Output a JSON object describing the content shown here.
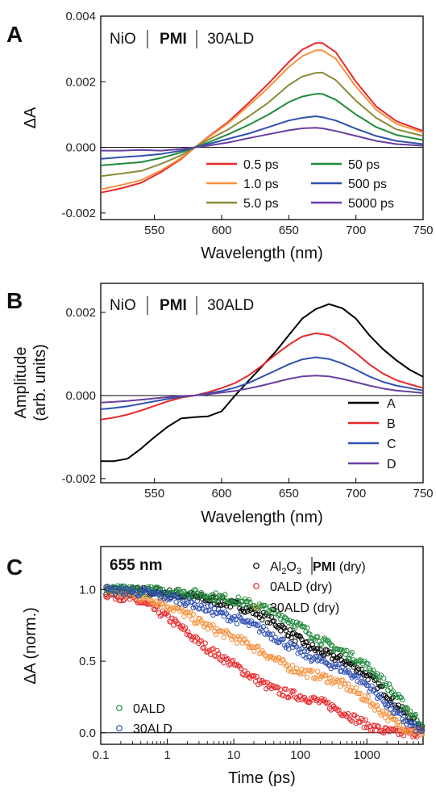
{
  "colors": {
    "red": "#e8282a",
    "orange": "#f5923e",
    "olive": "#8a8a3a",
    "green": "#218a3c",
    "blue": "#3050b0",
    "purple": "#6a3fa0",
    "black": "#000000"
  },
  "chart_data": [
    {
      "panel_letter": "A",
      "type": "line",
      "annotation_parts": [
        "NiO",
        "PMI",
        "30ALD"
      ],
      "xlabel": "Wavelength (nm)",
      "ylabel": "ΔA",
      "xlim": [
        510,
        750
      ],
      "ylim": [
        -0.0022,
        0.004
      ],
      "xticks": [
        550,
        600,
        650,
        700,
        750
      ],
      "yticks": [
        -0.002,
        0.0,
        0.002,
        0.004
      ],
      "ytick_labels": [
        "-0.002",
        "0.000",
        "0.002",
        "0.004"
      ],
      "legend_position": "bottom-right",
      "x": [
        510,
        525,
        540,
        555,
        570,
        580,
        590,
        605,
        620,
        635,
        650,
        660,
        670,
        675,
        685,
        700,
        715,
        730,
        750
      ],
      "series": [
        {
          "name": "0.5 ps",
          "color": "red",
          "values": [
            -0.00138,
            -0.00125,
            -0.00108,
            -0.00075,
            -0.00035,
            0.0,
            0.00032,
            0.00078,
            0.00135,
            0.00195,
            0.0026,
            0.00298,
            0.00318,
            0.00318,
            0.0029,
            0.002,
            0.00125,
            0.0008,
            0.0005
          ]
        },
        {
          "name": "1.0 ps",
          "color": "orange",
          "values": [
            -0.00128,
            -0.00115,
            -0.001,
            -0.0007,
            -0.00032,
            0.0,
            0.0003,
            0.00074,
            0.00127,
            0.00183,
            0.00245,
            0.00278,
            0.00296,
            0.00296,
            0.0027,
            0.00185,
            0.00115,
            0.00072,
            0.00045
          ]
        },
        {
          "name": "5.0 ps",
          "color": "olive",
          "values": [
            -0.00088,
            -0.0008,
            -0.00072,
            -0.0005,
            -0.00024,
            0.0,
            0.00023,
            0.00055,
            0.00094,
            0.00137,
            0.0019,
            0.00216,
            0.00227,
            0.00228,
            0.00205,
            0.00142,
            0.0009,
            0.00055,
            0.00035
          ]
        },
        {
          "name": "50 ps",
          "color": "green",
          "values": [
            -0.00055,
            -0.0005,
            -0.00045,
            -0.00032,
            -0.00015,
            0.0,
            0.00015,
            0.0004,
            0.00068,
            0.001,
            0.00138,
            0.00155,
            0.00163,
            0.00163,
            0.00145,
            0.001,
            0.00062,
            0.00038,
            0.00022
          ]
        },
        {
          "name": "500 ps",
          "color": "blue",
          "values": [
            -0.00035,
            -0.0003,
            -0.00026,
            -0.0002,
            -0.0001,
            0.0,
            0.0001,
            0.00026,
            0.00042,
            0.00062,
            0.00082,
            0.0009,
            0.00095,
            0.00092,
            0.00082,
            0.00057,
            0.00035,
            0.0002,
            0.0001
          ]
        },
        {
          "name": "5000 ps",
          "color": "purple",
          "values": [
            -0.0001,
            -0.0001,
            -8e-05,
            -0.0001,
            -5e-05,
            0.0,
            5e-05,
            0.00015,
            0.00028,
            0.0004,
            0.00052,
            0.00058,
            0.0006,
            0.00058,
            0.0005,
            0.00035,
            0.0002,
            0.0001,
            5e-05
          ]
        }
      ]
    },
    {
      "panel_letter": "B",
      "type": "line",
      "annotation_parts": [
        "NiO",
        "PMI",
        "30ALD"
      ],
      "xlabel": "Wavelength (nm)",
      "ylabel_lines": [
        "Amplitude",
        "(arb. units)"
      ],
      "xlim": [
        510,
        750
      ],
      "ylim": [
        -0.0021,
        0.0027
      ],
      "xticks": [
        550,
        600,
        650,
        700,
        750
      ],
      "yticks": [
        -0.002,
        0.0,
        0.002
      ],
      "ytick_labels": [
        "-0.002",
        "0.000",
        "0.002"
      ],
      "legend_position": "bottom-right",
      "x": [
        510,
        520,
        530,
        540,
        550,
        560,
        570,
        580,
        590,
        600,
        610,
        620,
        630,
        640,
        650,
        660,
        670,
        680,
        690,
        700,
        710,
        720,
        730,
        740,
        750
      ],
      "series": [
        {
          "name": "A",
          "color": "black",
          "values": [
            -0.00158,
            -0.00158,
            -0.00152,
            -0.00128,
            -0.001,
            -0.00075,
            -0.00055,
            -0.00052,
            -0.0005,
            -0.00038,
            0.0,
            0.00035,
            0.0007,
            0.00105,
            0.00145,
            0.00185,
            0.00208,
            0.0022,
            0.0021,
            0.00185,
            0.00145,
            0.00112,
            0.00085,
            0.00062,
            0.00045
          ]
        },
        {
          "name": "B",
          "color": "red",
          "values": [
            -0.00058,
            -0.00053,
            -0.00046,
            -0.00036,
            -0.00025,
            -0.00014,
            -5e-05,
            0.0,
            8e-05,
            0.00018,
            0.0003,
            0.00048,
            0.00072,
            0.00098,
            0.00122,
            0.00142,
            0.0015,
            0.00145,
            0.00127,
            0.00102,
            0.00075,
            0.00053,
            0.00037,
            0.00027,
            0.00018
          ]
        },
        {
          "name": "C",
          "color": "blue",
          "values": [
            -0.00033,
            -0.0003,
            -0.00026,
            -0.0002,
            -0.00014,
            -8e-05,
            -3e-05,
            0.0,
            5e-05,
            0.00011,
            0.00019,
            0.0003,
            0.00045,
            0.0006,
            0.00075,
            0.00087,
            0.00092,
            0.00088,
            0.00077,
            0.00062,
            0.00046,
            0.00033,
            0.00024,
            0.00018,
            0.00012
          ]
        },
        {
          "name": "D",
          "color": "purple",
          "values": [
            -0.00017,
            -0.00015,
            -0.00013,
            -0.0001,
            -7e-05,
            -4e-05,
            -1e-05,
            0.0,
            3e-05,
            7e-05,
            0.00011,
            0.00017,
            0.00024,
            0.00032,
            0.0004,
            0.00046,
            0.00048,
            0.00046,
            0.0004,
            0.00032,
            0.00024,
            0.00017,
            0.00012,
            9e-05,
            6e-05
          ]
        }
      ]
    },
    {
      "panel_letter": "C",
      "type": "scatter",
      "annotation": "655 nm",
      "xlabel": "Time (ps)",
      "ylabel": "ΔA (norm.)",
      "xscale": "log",
      "xlim": [
        0.1,
        7000
      ],
      "ylim": [
        -0.08,
        1.3
      ],
      "xticks": [
        0.1,
        1,
        10,
        100,
        1000
      ],
      "xtick_labels": [
        "0.1",
        "1",
        "10",
        "100",
        "1000"
      ],
      "yticks": [
        0.0,
        0.5,
        1.0
      ],
      "ytick_labels": [
        "0.0",
        "0.5",
        "1.0"
      ],
      "legend_top_position": "top-right",
      "legend_bottom_position": "bottom-left",
      "series": [
        {
          "name": "Al₂O₃ | PMI (dry)",
          "name_parts": {
            "a": "Al",
            "sub": "2",
            "b": "O",
            "sub3": "3",
            "pmi": "PMI",
            "tail": " (dry)"
          },
          "color": "black",
          "legend": "top",
          "lifetimes": [
            2,
            60,
            2500
          ],
          "amps": [
            0.05,
            0.35,
            0.6
          ],
          "tmin": 0.12
        },
        {
          "name": "0ALD (dry)",
          "color": "red",
          "legend": "top",
          "lifetimes": [
            1.5,
            15,
            600
          ],
          "amps": [
            0.35,
            0.35,
            0.3
          ],
          "tmin": 0.12
        },
        {
          "name": "30ALD (dry)",
          "color": "orange",
          "legend": "top",
          "lifetimes": [
            2,
            30,
            1500
          ],
          "amps": [
            0.25,
            0.3,
            0.45
          ],
          "tmin": 0.12
        },
        {
          "name": "0ALD",
          "color": "green",
          "legend": "bottom",
          "lifetimes": [
            5,
            100,
            3000
          ],
          "amps": [
            0.05,
            0.3,
            0.65
          ],
          "tmin": 0.12
        },
        {
          "name": "30ALD",
          "color": "blue",
          "legend": "bottom",
          "lifetimes": [
            3,
            50,
            2000
          ],
          "amps": [
            0.15,
            0.3,
            0.55
          ],
          "tmin": 0.12
        }
      ]
    }
  ]
}
